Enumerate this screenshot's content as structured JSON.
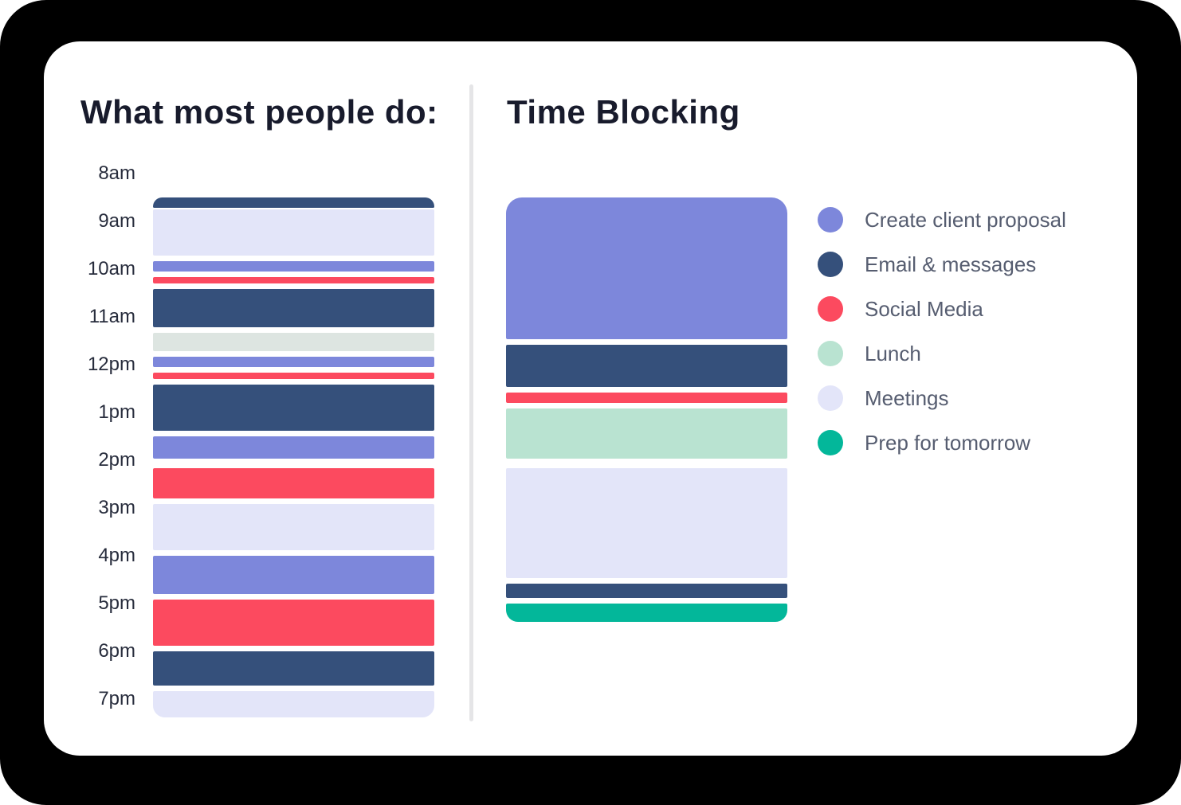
{
  "colors": {
    "background": "#000000",
    "card": "#ffffff",
    "title_text": "#181b2c",
    "axis_text": "#272c3c",
    "legend_text": "#565d70",
    "divider": "#e5e5e7",
    "proposal": "#7d87db",
    "email": "#35507b",
    "social": "#fc4a5f",
    "lunch": "#b9e3d1",
    "lunch_muted": "#dde5e1",
    "meetings": "#e3e5f9",
    "prep": "#03b79a"
  },
  "chart_data": [
    {
      "type": "bar",
      "subtype": "vertical-schedule-timeline",
      "title": "What most people do:",
      "time_axis": {
        "tick_labels": [
          "8am",
          "9am",
          "10am",
          "11am",
          "12pm",
          "1pm",
          "2pm",
          "3pm",
          "4pm",
          "5pm",
          "6pm",
          "7pm"
        ],
        "start": "8:00",
        "end": "19:30",
        "minutes_per_tick": 60
      },
      "blocks": [
        {
          "activity": "Email & messages",
          "start": "08:30",
          "end": "08:45",
          "color_key": "email"
        },
        {
          "activity": "Meetings",
          "start": "08:45",
          "end": "09:45",
          "color_key": "meetings"
        },
        {
          "activity": "Create client proposal",
          "start": "09:50",
          "end": "10:05",
          "color_key": "proposal"
        },
        {
          "activity": "Social Media",
          "start": "10:10",
          "end": "10:20",
          "color_key": "social"
        },
        {
          "activity": "Email & messages",
          "start": "10:25",
          "end": "11:15",
          "color_key": "email"
        },
        {
          "activity": "Lunch",
          "start": "11:20",
          "end": "11:45",
          "color_key": "lunch_muted"
        },
        {
          "activity": "Create client proposal",
          "start": "11:50",
          "end": "12:05",
          "color_key": "proposal"
        },
        {
          "activity": "Social Media",
          "start": "12:10",
          "end": "12:20",
          "color_key": "social"
        },
        {
          "activity": "Email & messages",
          "start": "12:25",
          "end": "13:25",
          "color_key": "email"
        },
        {
          "activity": "Create client proposal",
          "start": "13:30",
          "end": "14:00",
          "color_key": "proposal"
        },
        {
          "activity": "Social Media",
          "start": "14:10",
          "end": "14:50",
          "color_key": "social"
        },
        {
          "activity": "Meetings",
          "start": "14:55",
          "end": "15:55",
          "color_key": "meetings"
        },
        {
          "activity": "Create client proposal",
          "start": "16:00",
          "end": "16:50",
          "color_key": "proposal"
        },
        {
          "activity": "Social Media",
          "start": "16:55",
          "end": "17:55",
          "color_key": "social"
        },
        {
          "activity": "Email & messages",
          "start": "18:00",
          "end": "18:45",
          "color_key": "email"
        },
        {
          "activity": "Meetings",
          "start": "18:50",
          "end": "19:25",
          "color_key": "meetings"
        }
      ]
    },
    {
      "type": "bar",
      "subtype": "vertical-schedule-timeline",
      "title": "Time Blocking",
      "blocks": [
        {
          "activity": "Create client proposal",
          "start": "08:30",
          "end": "11:30",
          "color_key": "proposal"
        },
        {
          "activity": "Email & messages",
          "start": "11:35",
          "end": "12:30",
          "color_key": "email"
        },
        {
          "activity": "Social Media",
          "start": "12:35",
          "end": "12:50",
          "color_key": "social"
        },
        {
          "activity": "Lunch",
          "start": "12:55",
          "end": "14:00",
          "color_key": "lunch"
        },
        {
          "activity": "Meetings",
          "start": "14:10",
          "end": "16:30",
          "color_key": "meetings"
        },
        {
          "activity": "Email & messages",
          "start": "16:35",
          "end": "16:55",
          "color_key": "email"
        },
        {
          "activity": "Prep for tomorrow",
          "start": "17:00",
          "end": "17:25",
          "color_key": "prep"
        }
      ],
      "legend": [
        {
          "label": "Create client proposal",
          "color_key": "proposal"
        },
        {
          "label": "Email & messages",
          "color_key": "email"
        },
        {
          "label": "Social Media",
          "color_key": "social"
        },
        {
          "label": "Lunch",
          "color_key": "lunch"
        },
        {
          "label": "Meetings",
          "color_key": "meetings"
        },
        {
          "label": "Prep for tomorrow",
          "color_key": "prep"
        }
      ]
    }
  ]
}
